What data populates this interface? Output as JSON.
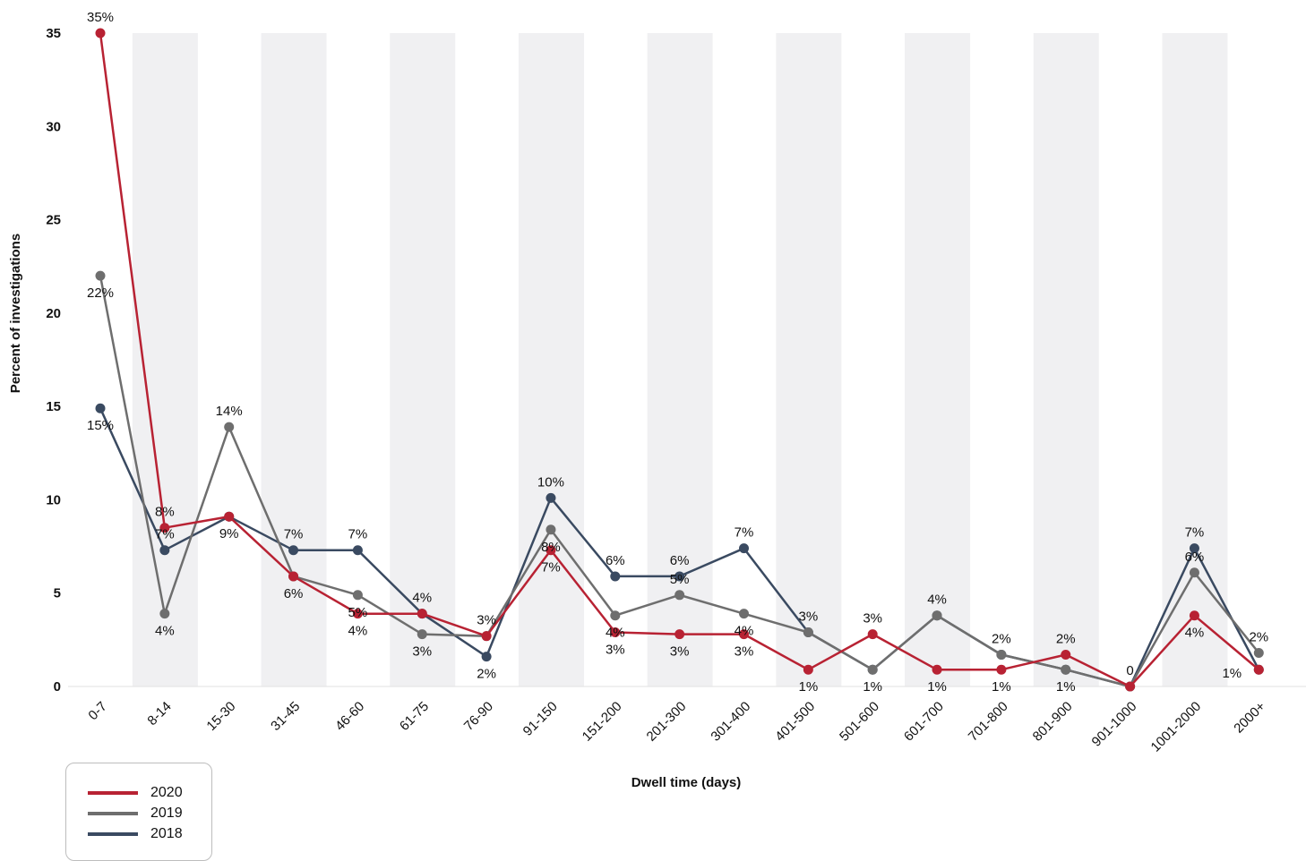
{
  "chart_data": {
    "type": "line",
    "xlabel": "Dwell time (days)",
    "ylabel": "Percent of investigations",
    "ylim": [
      0,
      35
    ],
    "yticks": [
      0,
      5,
      10,
      15,
      20,
      25,
      30,
      35
    ],
    "grid": "alternating vertical bands",
    "legend_position": "bottom-left",
    "categories": [
      "0-7",
      "8-14",
      "15-30",
      "31-45",
      "46-60",
      "61-75",
      "76-90",
      "91-150",
      "151-200",
      "201-300",
      "301-400",
      "401-500",
      "501-600",
      "601-700",
      "701-800",
      "801-900",
      "901-1000",
      "1001-2000",
      "2000+"
    ],
    "series": [
      {
        "name": "2020",
        "color": "#b82233",
        "values": [
          35,
          8.5,
          9.1,
          5.9,
          3.9,
          3.9,
          2.7,
          7.3,
          2.9,
          2.8,
          2.8,
          0.9,
          2.8,
          0.9,
          0.9,
          1.7,
          0,
          3.8,
          0.9
        ],
        "labels": [
          "35%",
          "8%",
          "9%",
          "6%",
          "4%",
          "4%",
          "3%",
          "7%",
          "3%",
          "3%",
          "3%",
          "1%",
          "3%",
          "1%",
          "1%",
          "2%",
          "0",
          "4%",
          "1%"
        ]
      },
      {
        "name": "2019",
        "color": "#6e6e6e",
        "values": [
          22,
          3.9,
          13.9,
          5.9,
          4.9,
          2.8,
          2.7,
          8.4,
          3.8,
          4.9,
          3.9,
          2.9,
          0.9,
          3.8,
          1.7,
          0.9,
          0,
          6.1,
          1.8
        ],
        "labels": [
          "22%",
          "4%",
          "14%",
          "",
          "5%",
          "3%",
          "",
          "8%",
          "4%",
          "5%",
          "4%",
          "3%",
          "1%",
          "4%",
          "2%",
          "1%",
          "",
          "6%",
          "2%"
        ]
      },
      {
        "name": "2018",
        "color": "#3a4a61",
        "values": [
          14.9,
          7.3,
          9.1,
          7.3,
          7.3,
          3.9,
          1.6,
          10.1,
          5.9,
          5.9,
          7.4,
          2.9,
          0.9,
          3.8,
          1.7,
          0.9,
          0,
          7.4,
          0.9
        ],
        "labels": [
          "15%",
          "7%",
          "",
          "7%",
          "7%",
          "",
          "2%",
          "10%",
          "6%",
          "6%",
          "7%",
          "",
          "",
          "",
          "",
          "",
          "",
          "7%",
          ""
        ]
      }
    ]
  }
}
